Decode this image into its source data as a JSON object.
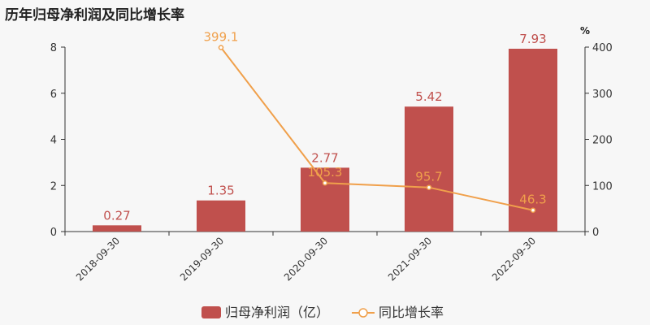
{
  "chart_data": {
    "type": "bar",
    "title": "历年归母净利润及同比增长率",
    "categories": [
      "2018-09-30",
      "2019-09-30",
      "2020-09-30",
      "2021-09-30",
      "2022-09-30"
    ],
    "series": [
      {
        "name": "归母净利润（亿）",
        "type": "bar",
        "axis": "left",
        "values": [
          0.27,
          1.35,
          2.77,
          5.42,
          7.93
        ],
        "labels": [
          "0.27",
          "1.35",
          "2.77",
          "5.42",
          "7.93"
        ],
        "color": "#c0504d"
      },
      {
        "name": "同比增长率",
        "type": "line",
        "axis": "right",
        "values": [
          null,
          399.1,
          105.3,
          95.7,
          46.3
        ],
        "labels": [
          "",
          "399.1",
          "105.3",
          "95.7",
          "46.3"
        ],
        "color": "#f0a04b"
      }
    ],
    "y_left": {
      "lim": [
        0,
        8
      ],
      "ticks": [
        "0",
        "2",
        "4",
        "6",
        "8"
      ]
    },
    "y_right": {
      "lim": [
        0,
        400
      ],
      "ticks": [
        "0",
        "100",
        "200",
        "300",
        "400"
      ],
      "unit": "%"
    },
    "legend": {
      "position": "bottom-center"
    },
    "grid": false
  }
}
